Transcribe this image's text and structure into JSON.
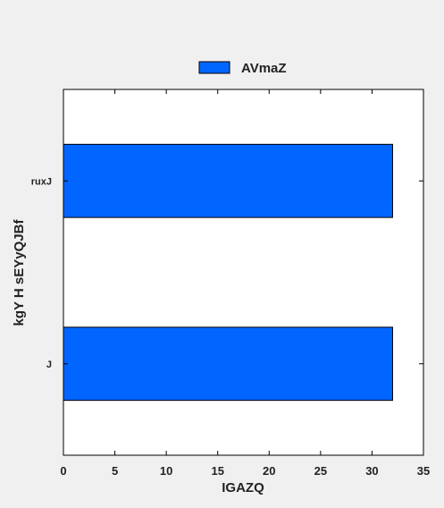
{
  "chart_data": {
    "type": "bar",
    "orientation": "horizontal",
    "categories": [
      "ruxJ",
      "J"
    ],
    "series": [
      {
        "name": "AVmaZ",
        "values": [
          32,
          32
        ],
        "color": "#0066ff"
      }
    ],
    "title": "",
    "xlabel": "IGAZQ",
    "ylabel": "kgY H sEYyQJBf",
    "xlim": [
      0,
      35
    ],
    "xticks": [
      0,
      5,
      10,
      15,
      20,
      25,
      30,
      35
    ],
    "grid": false,
    "legend_position": "top-center"
  }
}
